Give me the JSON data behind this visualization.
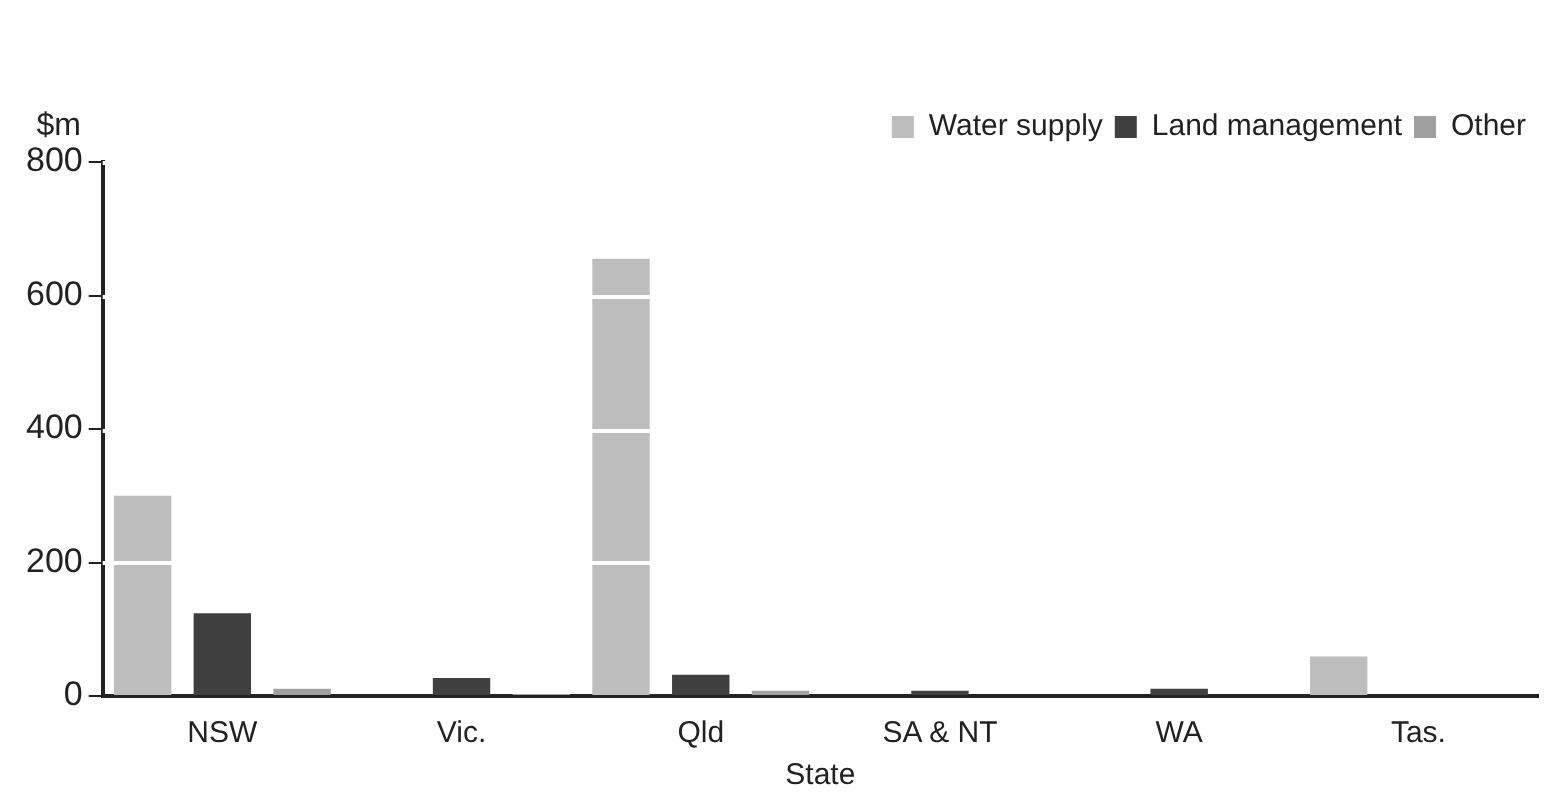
{
  "chart_data": {
    "type": "bar",
    "ylabel": "$m",
    "xlabel": "State",
    "categories": [
      "NSW",
      "Vic.",
      "Qld",
      "SA & NT",
      "WA",
      "Tas."
    ],
    "series": [
      {
        "name": "Water supply",
        "color": "#bdbdbd",
        "values": [
          300,
          0,
          655,
          null,
          0,
          59
        ]
      },
      {
        "name": "Land management",
        "color": "#404040",
        "values": [
          124,
          27,
          32,
          8,
          11,
          null
        ]
      },
      {
        "name": "Other",
        "color": "#a0a0a0",
        "values": [
          11,
          3,
          8,
          0,
          0,
          0
        ]
      }
    ],
    "ylim": [
      0,
      800
    ],
    "yticks": [
      0,
      200,
      400,
      600,
      800
    ],
    "grid": "y",
    "legend": "top right"
  }
}
